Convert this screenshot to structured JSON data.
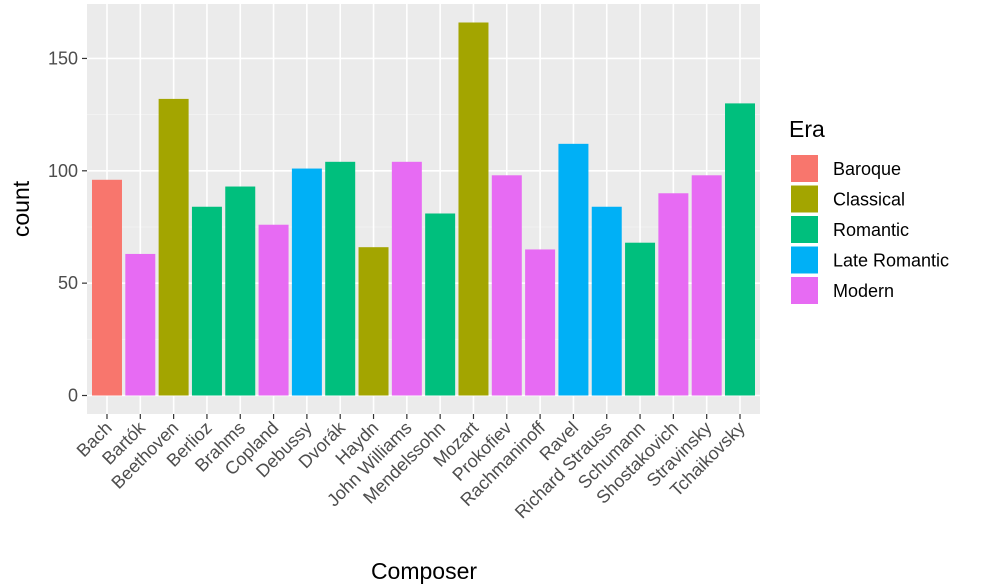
{
  "chart_data": {
    "type": "bar",
    "title": "",
    "xlabel": "Composer",
    "ylabel": "count",
    "ylim": [
      0,
      172
    ],
    "yticks": [
      0,
      50,
      100,
      150
    ],
    "grid": true,
    "legend_position": "right",
    "legend_title": "Era",
    "categories": [
      "Bach",
      "Bartók",
      "Beethoven",
      "Berlioz",
      "Brahms",
      "Copland",
      "Debussy",
      "Dvorák",
      "Haydn",
      "John Williams",
      "Mendelssohn",
      "Mozart",
      "Prokofiev",
      "Rachmaninoff",
      "Ravel",
      "Richard Strauss",
      "Schumann",
      "Shostakovich",
      "Stravinsky",
      "Tchaikovsky"
    ],
    "values": [
      96,
      63,
      132,
      84,
      93,
      76,
      101,
      104,
      66,
      104,
      81,
      166,
      98,
      65,
      112,
      84,
      68,
      90,
      98,
      130
    ],
    "era": [
      "Baroque",
      "Modern",
      "Classical",
      "Romantic",
      "Romantic",
      "Modern",
      "Late Romantic",
      "Romantic",
      "Classical",
      "Modern",
      "Romantic",
      "Classical",
      "Modern",
      "Modern",
      "Late Romantic",
      "Late Romantic",
      "Romantic",
      "Modern",
      "Modern",
      "Romantic"
    ],
    "legend": [
      {
        "label": "Baroque",
        "color": "#F8766D"
      },
      {
        "label": "Classical",
        "color": "#A3A500"
      },
      {
        "label": "Romantic",
        "color": "#00BF7D"
      },
      {
        "label": "Late Romantic",
        "color": "#00B0F6"
      },
      {
        "label": "Modern",
        "color": "#E76BF3"
      }
    ]
  }
}
